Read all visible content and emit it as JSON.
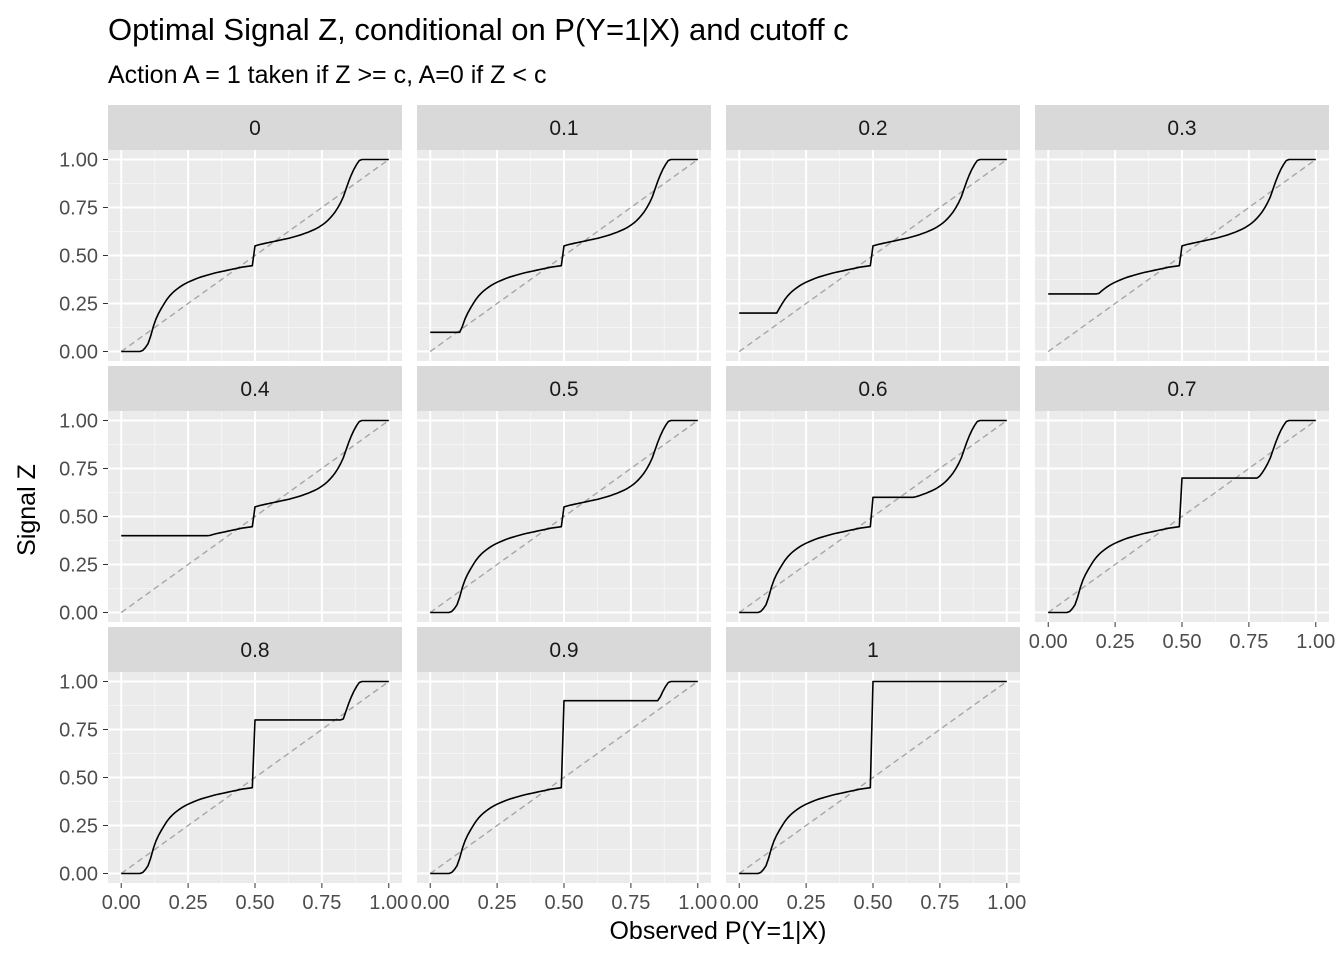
{
  "chart_data": {
    "type": "line",
    "title": "Optimal Signal Z, conditional on P(Y=1|X) and cutoff c",
    "subtitle": "Action A = 1 taken if Z >= c, A=0 if Z < c",
    "xlabel": "Observed P(Y=1|X)",
    "ylabel": "Signal Z",
    "xlim": [
      0,
      1
    ],
    "ylim": [
      0,
      1
    ],
    "x_ticks": [
      "0.00",
      "0.25",
      "0.50",
      "0.75",
      "1.00"
    ],
    "y_ticks": [
      "0.00",
      "0.25",
      "0.50",
      "0.75",
      "1.00"
    ],
    "grid": true,
    "facet_layout": {
      "columns": 4,
      "rows": 3
    },
    "reference_line": {
      "style": "dashed",
      "color": "#a6a6a6",
      "points": [
        [
          0,
          0
        ],
        [
          1,
          1
        ]
      ]
    },
    "series_color": "#000000",
    "base_curve": {
      "x": [
        0,
        0.01,
        0.02,
        0.03,
        0.04,
        0.05,
        0.06,
        0.07,
        0.08,
        0.09,
        0.1,
        0.11,
        0.12,
        0.13,
        0.14,
        0.15,
        0.16,
        0.17,
        0.18,
        0.19,
        0.2,
        0.21,
        0.22,
        0.23,
        0.24,
        0.25,
        0.26,
        0.27,
        0.28,
        0.29,
        0.3,
        0.31,
        0.32,
        0.33,
        0.34,
        0.35,
        0.36,
        0.37,
        0.38,
        0.39,
        0.4,
        0.41,
        0.42,
        0.43,
        0.44,
        0.45,
        0.46,
        0.47,
        0.48,
        0.49,
        0.5,
        0.51,
        0.52,
        0.53,
        0.54,
        0.55,
        0.56,
        0.57,
        0.58,
        0.59,
        0.6,
        0.61,
        0.62,
        0.63,
        0.64,
        0.65,
        0.66,
        0.67,
        0.68,
        0.69,
        0.7,
        0.71,
        0.72,
        0.73,
        0.74,
        0.75,
        0.76,
        0.77,
        0.78,
        0.79,
        0.8,
        0.81,
        0.82,
        0.83,
        0.84,
        0.85,
        0.86,
        0.87,
        0.88,
        0.89,
        0.9,
        0.91,
        0.92,
        0.93,
        0.94,
        0.95,
        0.96,
        0.97,
        0.98,
        0.99,
        1
      ],
      "y": [
        0,
        0,
        0,
        0,
        0,
        0,
        0,
        0,
        0.005,
        0.02,
        0.04,
        0.08,
        0.13,
        0.17,
        0.2,
        0.225,
        0.248,
        0.27,
        0.288,
        0.303,
        0.316,
        0.327,
        0.337,
        0.346,
        0.354,
        0.361,
        0.367,
        0.373,
        0.379,
        0.384,
        0.389,
        0.393,
        0.397,
        0.401,
        0.405,
        0.409,
        0.412,
        0.415,
        0.418,
        0.421,
        0.424,
        0.427,
        0.43,
        0.433,
        0.436,
        0.439,
        0.441,
        0.443,
        0.445,
        0.447,
        0.55,
        0.554,
        0.558,
        0.561,
        0.564,
        0.567,
        0.57,
        0.573,
        0.576,
        0.579,
        0.582,
        0.585,
        0.588,
        0.591,
        0.595,
        0.599,
        0.603,
        0.607,
        0.612,
        0.617,
        0.622,
        0.628,
        0.634,
        0.641,
        0.649,
        0.658,
        0.668,
        0.68,
        0.694,
        0.71,
        0.728,
        0.75,
        0.775,
        0.805,
        0.845,
        0.885,
        0.92,
        0.95,
        0.975,
        0.995,
        1,
        1,
        1,
        1,
        1,
        1,
        1,
        1,
        1,
        1,
        1
      ]
    },
    "facets": [
      {
        "label": "0",
        "cutoff": 0
      },
      {
        "label": "0.1",
        "cutoff": 0.1
      },
      {
        "label": "0.2",
        "cutoff": 0.2
      },
      {
        "label": "0.3",
        "cutoff": 0.3
      },
      {
        "label": "0.4",
        "cutoff": 0.4
      },
      {
        "label": "0.5",
        "cutoff": 0.5
      },
      {
        "label": "0.6",
        "cutoff": 0.6
      },
      {
        "label": "0.7",
        "cutoff": 0.7
      },
      {
        "label": "0.8",
        "cutoff": 0.8
      },
      {
        "label": "0.9",
        "cutoff": 0.9
      },
      {
        "label": "1",
        "cutoff": 1
      }
    ]
  }
}
